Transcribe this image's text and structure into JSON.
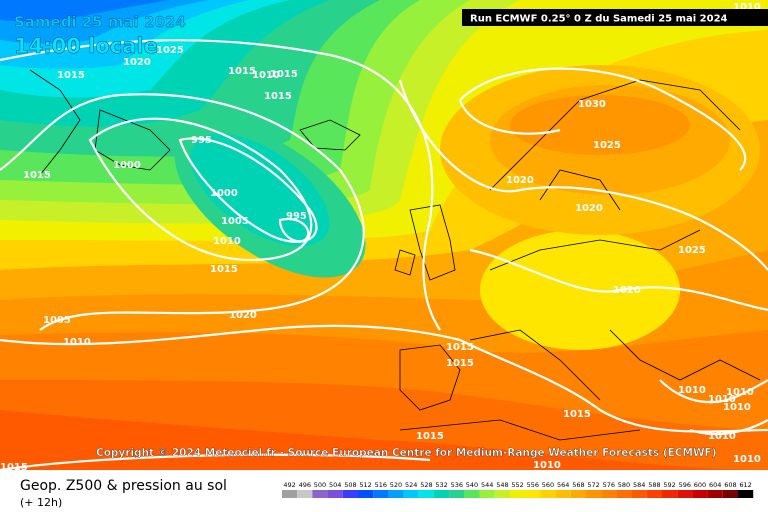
{
  "header": {
    "date": "Samedi 25 mai 2024",
    "time": "14:00 locale",
    "run": "Run ECMWF 0.25° 0 Z du Samedi 25 mai 2024"
  },
  "copyright": "Copyright © 2024 Meteociel.fr - Source European Centre for Medium-Range Weather Forecasts (ECMWF)",
  "footer": {
    "title": "Geop. Z500 & pression au sol",
    "lead": "(+ 12h)"
  },
  "isobar_labels": [
    "1025",
    "1020",
    "1015",
    "1015",
    "1010",
    "1015",
    "1015",
    "995",
    "1000",
    "1015",
    "1000",
    "1005",
    "995",
    "1010",
    "1015",
    "1020",
    "1005",
    "1010",
    "1030",
    "1025",
    "1020",
    "1020",
    "1025",
    "1020",
    "1015",
    "1015",
    "1010",
    "1010",
    "1010",
    "1010",
    "1015",
    "1015",
    "1010",
    "1010",
    "1010",
    "1010",
    "1015"
  ],
  "scale": {
    "labels": [
      492,
      496,
      500,
      504,
      508,
      512,
      516,
      520,
      524,
      528,
      532,
      536,
      540,
      544,
      548,
      552,
      556,
      560,
      564,
      568,
      572,
      576,
      580,
      584,
      588,
      592,
      596,
      600,
      604,
      608,
      612
    ],
    "colors": [
      "#a0a0a0",
      "#c8c8c8",
      "#8c64c8",
      "#7850dc",
      "#3c3cff",
      "#0050ff",
      "#0078ff",
      "#00a0ff",
      "#00c8ff",
      "#00e6e6",
      "#00d2b4",
      "#28d28c",
      "#5ae65a",
      "#96f03c",
      "#c8f028",
      "#f0f000",
      "#ffe600",
      "#ffd200",
      "#ffbe00",
      "#ffaa00",
      "#ff9600",
      "#ff8200",
      "#ff6e00",
      "#ff5a00",
      "#ff4100",
      "#f02800",
      "#dc1400",
      "#c80000",
      "#a00000",
      "#780000",
      "#000000"
    ]
  }
}
